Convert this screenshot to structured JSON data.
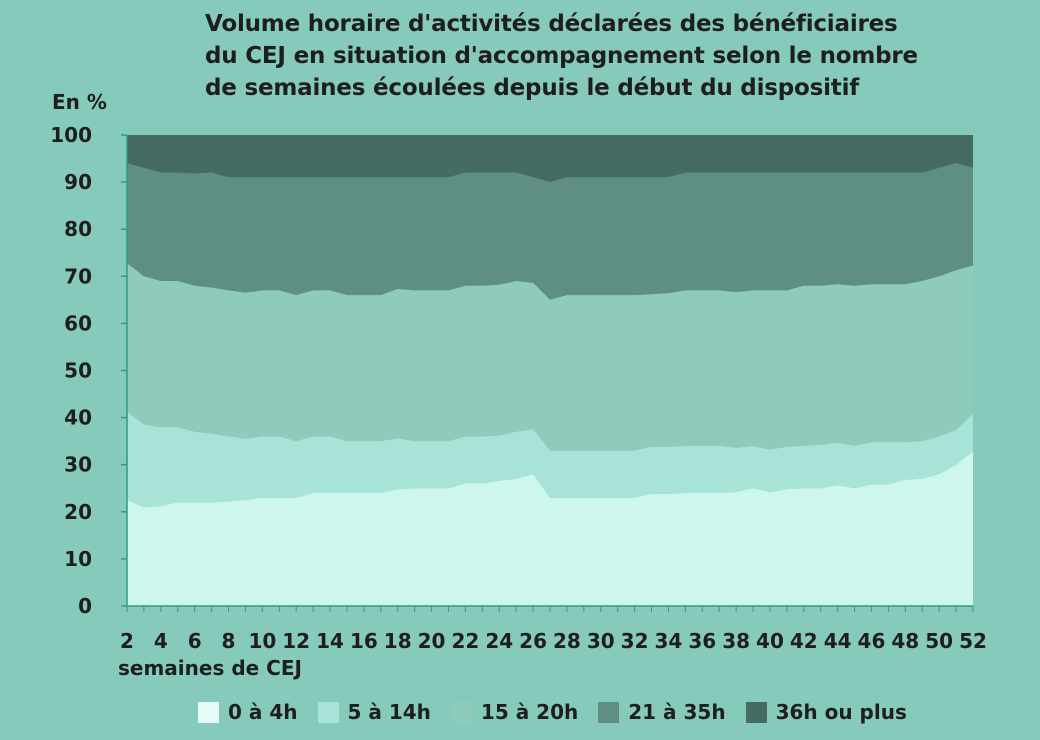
{
  "chart_data": {
    "type": "area",
    "stacked": true,
    "title_lines": [
      "Volume horaire d'activités déclarées des bénéficiaires",
      "du CEJ en situation d'accompagnement selon le nombre",
      "de semaines écoulées depuis le début du dispositif"
    ],
    "ylabel": "En %",
    "xlabel": "semaines de CEJ",
    "ylim": [
      0,
      100
    ],
    "yticks": [
      0,
      10,
      20,
      30,
      40,
      50,
      60,
      70,
      80,
      90,
      100
    ],
    "xlim": [
      2,
      52
    ],
    "xticks": [
      2,
      4,
      6,
      8,
      10,
      12,
      14,
      16,
      18,
      20,
      22,
      24,
      26,
      28,
      30,
      32,
      34,
      36,
      38,
      40,
      42,
      44,
      46,
      48,
      50,
      52
    ],
    "x": [
      2,
      3,
      4,
      5,
      6,
      7,
      8,
      9,
      10,
      11,
      12,
      13,
      14,
      15,
      16,
      17,
      18,
      19,
      20,
      21,
      22,
      23,
      24,
      25,
      26,
      27,
      28,
      29,
      30,
      31,
      32,
      33,
      34,
      35,
      36,
      37,
      38,
      39,
      40,
      41,
      42,
      43,
      44,
      45,
      46,
      47,
      48,
      49,
      50,
      51,
      52
    ],
    "series": [
      {
        "name": "0 à 4h",
        "color": "#cdf6ec",
        "values": [
          22.5,
          21,
          21.2,
          22,
          22,
          22,
          22.2,
          22.5,
          23,
          23,
          23,
          24,
          24,
          24,
          24,
          24,
          24.8,
          25,
          25,
          25,
          26,
          26,
          26.6,
          27,
          28,
          23,
          23,
          23,
          23,
          23,
          23,
          23.8,
          23.8,
          24,
          24,
          24,
          24.2,
          25,
          24.2,
          24.8,
          25,
          25,
          25.7,
          25,
          25.8,
          25.8,
          26.8,
          27,
          28,
          30,
          32.8
        ]
      },
      {
        "name": "5 à 14h",
        "color": "#a7e3d6",
        "values": [
          18.8,
          17.5,
          16.8,
          16,
          15,
          14.6,
          13.8,
          13,
          13,
          13,
          12,
          12,
          12,
          11,
          11,
          11,
          10.8,
          10,
          10,
          10,
          10,
          10,
          9.6,
          10,
          9.6,
          10,
          10,
          10,
          10,
          10,
          10,
          10,
          10,
          10,
          10,
          10,
          9.4,
          9,
          9,
          9,
          9,
          9.2,
          9,
          9,
          9,
          9,
          8,
          8,
          8,
          7.3,
          8
        ]
      },
      {
        "name": "15 à 20h",
        "color": "#8fcbbd",
        "values": [
          31.5,
          31.5,
          31,
          31,
          31,
          31,
          31,
          31,
          31,
          31,
          31,
          31,
          31,
          31,
          31,
          31,
          31.7,
          32,
          32,
          32,
          32,
          32,
          32,
          32,
          31,
          32,
          33,
          33,
          33,
          33,
          33,
          32.4,
          32.6,
          33,
          33,
          33,
          33,
          33,
          33.8,
          33.2,
          34,
          33.8,
          33.6,
          34,
          33.5,
          33.5,
          33.5,
          34,
          34,
          34,
          31.5
        ]
      },
      {
        "name": "21 à 35h",
        "color": "#5f8f82",
        "values": [
          21.2,
          23,
          23,
          23,
          23.8,
          24.4,
          24,
          24.5,
          24,
          24,
          25,
          24,
          24,
          25,
          25,
          25,
          23.7,
          24,
          24,
          24,
          24,
          24,
          23.8,
          23,
          22.4,
          25,
          25,
          25,
          25,
          25,
          25,
          24.8,
          24.6,
          25,
          25,
          25,
          25.4,
          25,
          25,
          25,
          24,
          24,
          23.7,
          24,
          23.7,
          23.7,
          23.7,
          23,
          23,
          22.7,
          20.7
        ]
      },
      {
        "name": "36h ou plus",
        "color": "#466b62",
        "values": [
          6,
          7,
          8,
          8,
          9,
          9,
          9,
          9,
          9,
          9,
          9,
          9,
          9,
          9,
          9,
          9,
          9,
          9,
          9,
          9,
          8,
          8,
          8,
          8,
          9,
          10,
          9,
          9,
          9,
          9,
          9,
          9,
          9,
          8,
          8,
          8,
          8,
          8,
          8,
          8,
          8,
          8,
          8,
          8,
          8,
          8,
          8,
          8,
          7,
          7,
          7
        ]
      }
    ],
    "legend_position": "bottom",
    "grid": false
  }
}
